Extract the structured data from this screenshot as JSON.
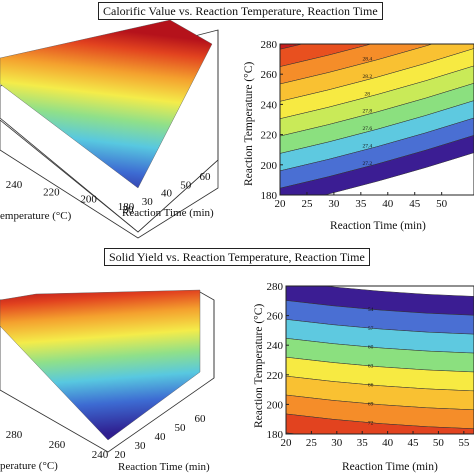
{
  "figure": {
    "panel_a_title": "Calorific Value vs. Reaction Temperature, Reaction Time",
    "panel_b_title": "Solid Yield vs. Reaction Temperature, Reaction Time"
  },
  "chart_data": [
    {
      "type": "surface3d",
      "x_label": "Reaction Time (min)",
      "y_label": "Reaction Temperature (°C)",
      "x_ticks": [
        "20",
        "30",
        "40",
        "50",
        "60"
      ],
      "y_ticks": [
        "180",
        "200",
        "220",
        "240"
      ],
      "y_label_visible": "emperature (°C)",
      "colormap": [
        "#2f1e8f",
        "#3d6bd2",
        "#58c8e0",
        "#8fe08a",
        "#f4ec4a",
        "#f4a12e",
        "#e2431f",
        "#b5121b"
      ]
    },
    {
      "type": "contour",
      "x_label": "Reaction Time (min)",
      "y_label": "Reaction Temperature (°C)",
      "x_ticks": [
        "20",
        "25",
        "30",
        "35",
        "40",
        "45",
        "50"
      ],
      "y_ticks": [
        "180",
        "200",
        "220",
        "240",
        "260",
        "280"
      ],
      "xlim": [
        20,
        56
      ],
      "ylim": [
        180,
        280
      ],
      "levels": [
        "27",
        "27.2",
        "27.4",
        "27.6",
        "27.8",
        "28",
        "28.2",
        "28.4",
        "28.6",
        "28.8",
        "29"
      ],
      "colors": [
        "#3b1d93",
        "#4a6fd3",
        "#5ec9e0",
        "#8be07f",
        "#c9ea58",
        "#f7ea42",
        "#f9c132",
        "#f58d29",
        "#e8501f",
        "#c81d1b"
      ]
    },
    {
      "type": "surface3d",
      "x_label": "Reaction Time (min)",
      "y_label": "Reaction Temperature (°C)",
      "x_ticks": [
        "20",
        "30",
        "40",
        "50",
        "60"
      ],
      "y_ticks": [
        "240",
        "260",
        "280"
      ],
      "y_label_visible": "perature (°C)",
      "colormap": [
        "#2f1e8f",
        "#3d6bd2",
        "#58c8e0",
        "#8fe08a",
        "#f4ec4a",
        "#f4a12e",
        "#e2431f",
        "#b5121b"
      ]
    },
    {
      "type": "contour",
      "x_label": "Reaction Time (min)",
      "y_label": "Reaction Temperature (°C)",
      "x_ticks": [
        "20",
        "25",
        "30",
        "35",
        "40",
        "45",
        "50",
        "55"
      ],
      "y_ticks": [
        "180",
        "200",
        "220",
        "240",
        "260",
        "280"
      ],
      "xlim": [
        20,
        57
      ],
      "ylim": [
        180,
        280
      ],
      "levels": [
        "51",
        "54",
        "57",
        "60",
        "63",
        "66",
        "69",
        "72",
        "75",
        "78",
        "81"
      ],
      "colors": [
        "#b31620",
        "#e2431f",
        "#f58d29",
        "#f9c132",
        "#f7ea42",
        "#8be07f",
        "#5ec9e0",
        "#4a6fd3",
        "#3b1d93"
      ]
    }
  ]
}
